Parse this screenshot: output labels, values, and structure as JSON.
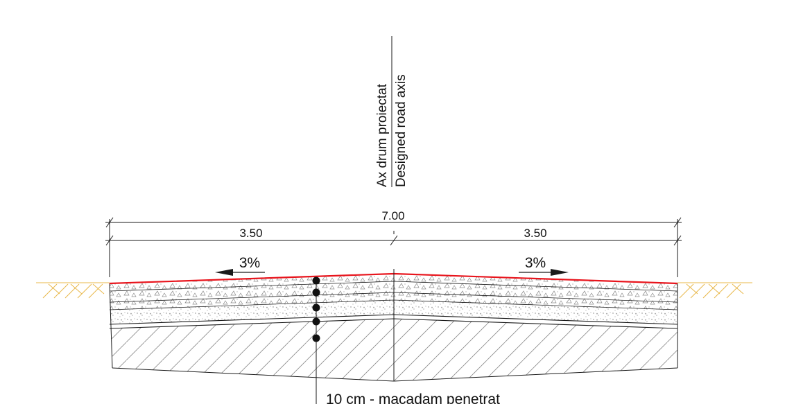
{
  "axis_label": {
    "line1": "Ax drum proiectat",
    "line2": "Designed road axis"
  },
  "dimensions": {
    "total": "7.00",
    "left_half": "3.50",
    "right_half": "3.50"
  },
  "slopes": {
    "left": "3%",
    "right": "3%"
  },
  "callout": {
    "text": "10 cm - macadam penetrat"
  },
  "colors": {
    "surface_line": "#e8141c",
    "ground_hatch": "#e9b84a",
    "line": "#1a1a1a"
  }
}
